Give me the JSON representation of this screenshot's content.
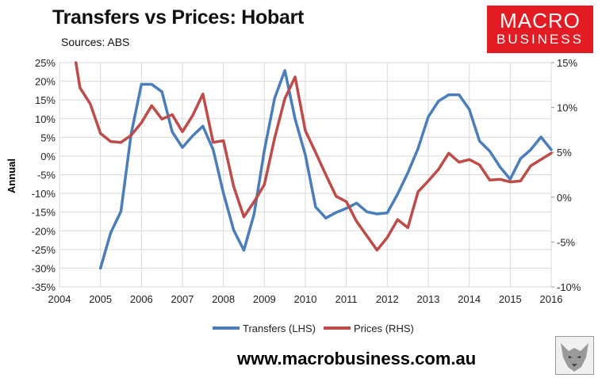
{
  "title": "Transfers vs Prices: Hobart",
  "subtitle": "Sources: ABS",
  "logo": {
    "line1": "MACRO",
    "line2": "BUSINESS",
    "color": "#e31b23"
  },
  "footer": "www.macrobusiness.com.au",
  "chart_data": {
    "type": "line",
    "ylabel": "Annual",
    "x_ticks": [
      "2004",
      "2005",
      "2006",
      "2007",
      "2008",
      "2009",
      "2010",
      "2011",
      "2012",
      "2013",
      "2014",
      "2015",
      "2016"
    ],
    "y_left_ticks": [
      "25%",
      "20%",
      "15%",
      "10%",
      "5%",
      "0%",
      "-5%",
      "-10%",
      "-15%",
      "-20%",
      "-25%",
      "-30%",
      "-35%"
    ],
    "y_right_ticks": [
      "15%",
      "10%",
      "5%",
      "0%",
      "-5%",
      "-10%"
    ],
    "ylim_left": [
      -35,
      25
    ],
    "ylim_right": [
      -10,
      15
    ],
    "xlim": [
      2004,
      2016
    ],
    "grid": true,
    "legend_position": "bottom",
    "series": [
      {
        "name": "Transfers (LHS)",
        "axis": "left",
        "color": "#4a7ebb",
        "x": [
          2005.0,
          2005.25,
          2005.5,
          2005.75,
          2006.0,
          2006.25,
          2006.5,
          2006.75,
          2007.0,
          2007.25,
          2007.5,
          2007.75,
          2008.0,
          2008.25,
          2008.5,
          2008.75,
          2009.0,
          2009.25,
          2009.5,
          2009.75,
          2010.0,
          2010.25,
          2010.5,
          2010.75,
          2011.0,
          2011.25,
          2011.5,
          2011.75,
          2012.0,
          2012.25,
          2012.5,
          2012.75,
          2013.0,
          2013.25,
          2013.5,
          2013.75,
          2014.0,
          2014.25,
          2014.5,
          2014.75,
          2015.0,
          2015.25,
          2015.5,
          2015.75,
          2016.0
        ],
        "values": [
          -30.0,
          -20.5,
          -14.8,
          6.0,
          19.2,
          19.2,
          17.2,
          6.5,
          2.3,
          5.4,
          8.0,
          1.7,
          -9.9,
          -19.8,
          -25.2,
          -15.5,
          1.5,
          15.5,
          22.9,
          9.9,
          0.3,
          -13.6,
          -16.6,
          -15.1,
          -14.0,
          -12.6,
          -14.9,
          -15.5,
          -15.2,
          -10.2,
          -4.5,
          2.0,
          10.5,
          14.7,
          16.4,
          16.4,
          12.5,
          4.0,
          1.3,
          -2.9,
          -6.2,
          -0.7,
          1.7,
          5.1,
          1.7
        ]
      },
      {
        "name": "Prices (RHS)",
        "axis": "right",
        "color": "#be4b48",
        "x": [
          2004.4,
          2004.5,
          2004.75,
          2005.0,
          2005.25,
          2005.5,
          2005.75,
          2006.0,
          2006.25,
          2006.5,
          2006.75,
          2007.0,
          2007.25,
          2007.5,
          2007.75,
          2008.0,
          2008.25,
          2008.5,
          2008.75,
          2009.0,
          2009.25,
          2009.5,
          2009.75,
          2010.0,
          2010.25,
          2010.5,
          2010.75,
          2011.0,
          2011.25,
          2011.5,
          2011.75,
          2012.0,
          2012.25,
          2012.5,
          2012.75,
          2013.0,
          2013.25,
          2013.5,
          2013.75,
          2014.0,
          2014.25,
          2014.5,
          2014.75,
          2015.0,
          2015.25,
          2015.5,
          2015.75,
          2016.0
        ],
        "values": [
          15.0,
          12.2,
          10.4,
          7.1,
          6.2,
          6.1,
          6.9,
          8.3,
          10.2,
          8.7,
          9.2,
          7.3,
          9.1,
          11.5,
          6.1,
          6.3,
          1.2,
          -2.2,
          -0.5,
          1.4,
          6.6,
          11.0,
          13.4,
          7.4,
          5.0,
          2.5,
          0.1,
          -0.5,
          -2.7,
          -4.3,
          -5.9,
          -4.5,
          -2.5,
          -3.4,
          0.6,
          1.8,
          3.1,
          4.9,
          3.9,
          4.2,
          3.6,
          1.9,
          2.0,
          1.7,
          1.8,
          3.5,
          4.2,
          4.9
        ]
      }
    ]
  }
}
